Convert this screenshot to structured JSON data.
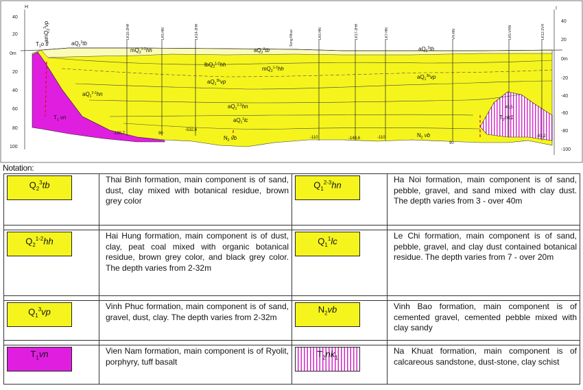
{
  "cross_section": {
    "left_axis_title": "H",
    "right_axis_title": "I",
    "left_ticks": [
      "40",
      "20",
      "0m",
      "20",
      "40",
      "60",
      "80",
      "100"
    ],
    "right_ticks": [
      "40",
      "20",
      "0m",
      "-20",
      "-40",
      "-60",
      "-80",
      "-100"
    ],
    "boreholes": [
      "LK16-2HH",
      "LK5-HN",
      "LK14-2HH",
      "LK6-HN",
      "LK17-2HH",
      "LK7-HN",
      "VH-HN",
      "LK5-VHN",
      "LK12-2VH"
    ],
    "river_label": "Song Nhue",
    "depth_labels": [
      "-180,7",
      "90",
      "-532,6",
      "-110",
      "-148,6",
      "-110",
      "90",
      "40,5",
      "-83,2"
    ],
    "unit_labels": [
      {
        "base": "T",
        "sub": "1",
        "sup": "",
        "form": "o tl",
        "key": "t1o"
      },
      {
        "base": "amQ",
        "sub": "2",
        "sup": "3",
        "form": "vp",
        "key": "amq"
      },
      {
        "base": "aQ",
        "sub": "2",
        "sup": "3",
        "form": "tb",
        "key": "aq2tb1"
      },
      {
        "base": "mQ",
        "sub": "2",
        "sup": "1-2",
        "form": "hh",
        "key": "mq2hh"
      },
      {
        "base": "aQ",
        "sub": "2",
        "sup": "3",
        "form": "tb",
        "key": "aq2tb2"
      },
      {
        "base": "aQ",
        "sub": "2",
        "sup": "3",
        "form": "tb",
        "key": "aq2tb3"
      },
      {
        "base": "lbQ",
        "sub": "2",
        "sup": "1-2",
        "form": "hh",
        "key": "lbq2hh"
      },
      {
        "base": "mQ",
        "sub": "2",
        "sup": "1-2",
        "form": "hh",
        "key": "mq2hh2"
      },
      {
        "base": "aQ",
        "sub": "1",
        "sup": "3b",
        "form": "vp",
        "key": "aq1vp1"
      },
      {
        "base": "aQ",
        "sub": "1",
        "sup": "3b",
        "form": "vp",
        "key": "aq1vp2"
      },
      {
        "base": "aQ",
        "sub": "1",
        "sup": "2-3",
        "form": "hn",
        "key": "aq1hn1"
      },
      {
        "base": "aQ",
        "sub": "1",
        "sup": "2-3",
        "form": "hn",
        "key": "aq1hn2"
      },
      {
        "base": "aQ",
        "sub": "1",
        "sup": "1",
        "form": "lc",
        "key": "aq1lc"
      },
      {
        "base": "T",
        "sub": "1",
        "sup": "",
        "form": " vn",
        "key": "t1vn"
      },
      {
        "base": "N",
        "sub": "2",
        "sup": "",
        "form": " vb",
        "key": "n2vb1"
      },
      {
        "base": "N",
        "sub": "2",
        "sup": "",
        "form": " vb",
        "key": "n2vb2"
      },
      {
        "base": "T",
        "sub": "2",
        "sup": "",
        "form": "nk1",
        "key": "t2nk"
      }
    ]
  },
  "notation_title": "Notation:",
  "legend": [
    {
      "sym": {
        "base": "Q",
        "sub": "2",
        "sup": "3",
        "form": "tb"
      },
      "color": "yellow",
      "text": "Thai Binh formation, main component is of sand, dust, clay mixed with botanical residue, brown grey color"
    },
    {
      "sym": {
        "base": "Q",
        "sub": "1",
        "sup": "2-3",
        "form": "hn"
      },
      "color": "yellow",
      "text": "Ha Noi formation, main component is of sand, pebble, gravel, and sand mixed with clay dust. The depth varies from 3 - over 40m"
    },
    {
      "sym": {
        "base": "Q",
        "sub": "2",
        "sup": "1-2",
        "form": "hh"
      },
      "color": "yellow",
      "text": "Hai Hung formation, main component is of dust, clay, peat coal mixed with organic botanical residue, brown grey color, and black grey color. The depth varies from 2-32m"
    },
    {
      "sym": {
        "base": "Q",
        "sub": "1",
        "sup": "1",
        "form": "lc"
      },
      "color": "yellow",
      "text": "Le Chi formation, main component is of sand, pebble, gravel, and clay dust contained botanical residue. The depth varies from 7 - over 20m"
    },
    {
      "sym": {
        "base": "Q",
        "sub": "1",
        "sup": "3",
        "form": "vp"
      },
      "color": "yellow",
      "text": "Vinh Phuc formation, main component is of sand, gravel, dust, clay. The depth varies from 2-32m"
    },
    {
      "sym": {
        "base": "N",
        "sub": "2",
        "sup": "",
        "form": "vb"
      },
      "color": "yellow",
      "text": "Vinh Bao formation, main component is of cemented gravel, cemented pebble mixed with clay sandy"
    },
    {
      "sym": {
        "base": "T",
        "sub": "1",
        "sup": "",
        "form": "vn"
      },
      "color": "magenta",
      "text": "Vien Nam formation, main component is of Ryolit, porphyry, tuff basalt"
    },
    {
      "sym": {
        "base": "T",
        "sub": "2",
        "sup": "",
        "form": "nk",
        "form_sub": "1"
      },
      "color": "hatch",
      "text": "Na Khuat formation, main component is of calcareous sandstone, dust-stone, clay schist"
    }
  ]
}
